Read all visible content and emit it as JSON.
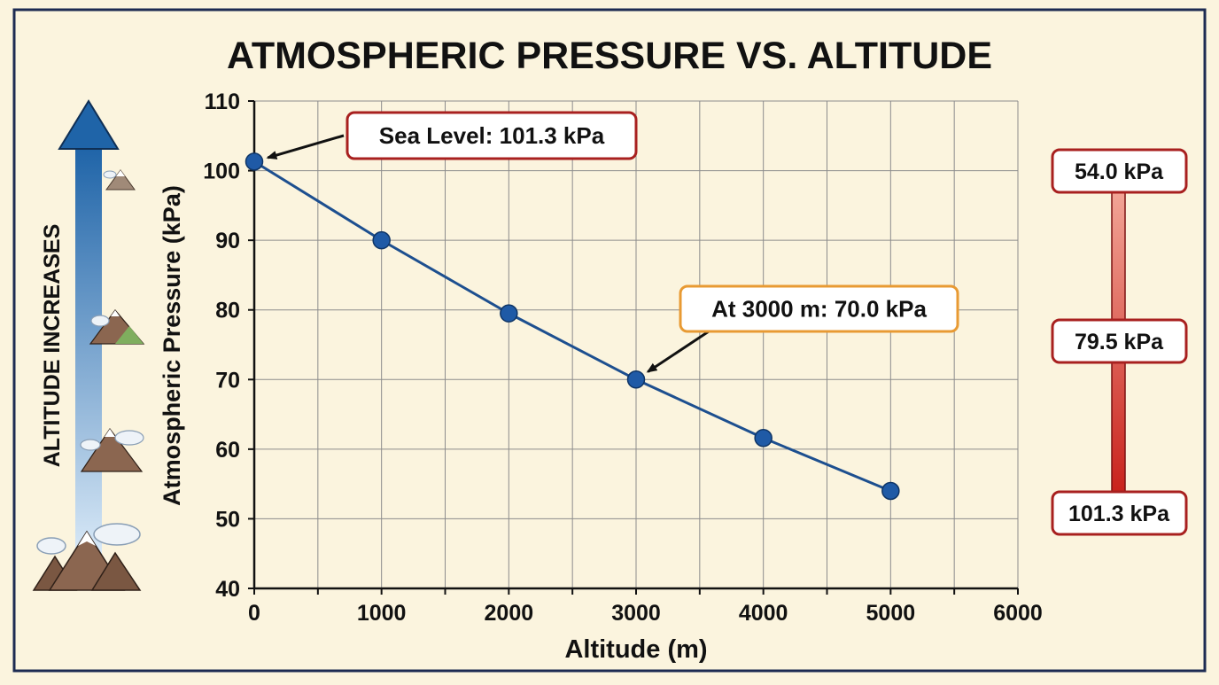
{
  "chart_data": {
    "type": "line",
    "title": "ATMOSPHERIC PRESSURE VS. ALTITUDE",
    "xlabel": "Altitude (m)",
    "ylabel": "Atmospheric Pressure (kPa)",
    "xlim": [
      0,
      6000
    ],
    "ylim": [
      40,
      110
    ],
    "xticks": [
      0,
      1000,
      2000,
      3000,
      4000,
      5000,
      6000
    ],
    "yticks": [
      40,
      50,
      60,
      70,
      80,
      90,
      100,
      110
    ],
    "grid": true,
    "series": [
      {
        "x": [
          0,
          1000,
          2000,
          3000,
          4000,
          5000
        ],
        "values": [
          101.3,
          90.0,
          79.5,
          70.0,
          61.6,
          54.0
        ],
        "color": "#1f5aa6"
      }
    ],
    "annotations": [
      {
        "text": "Sea Level: 101.3 kPa",
        "x": 0,
        "y": 101.3,
        "border": "#a8201f"
      },
      {
        "text": "At 3000 m: 70.0 kPa",
        "x": 3000,
        "y": 70.0,
        "border": "#e89a33"
      }
    ],
    "side_labels": {
      "left_arrow": "ALTITUDE INCREASES",
      "right_scale": [
        "54.0 kPa",
        "79.5 kPa",
        "101.3 kPa"
      ]
    }
  }
}
